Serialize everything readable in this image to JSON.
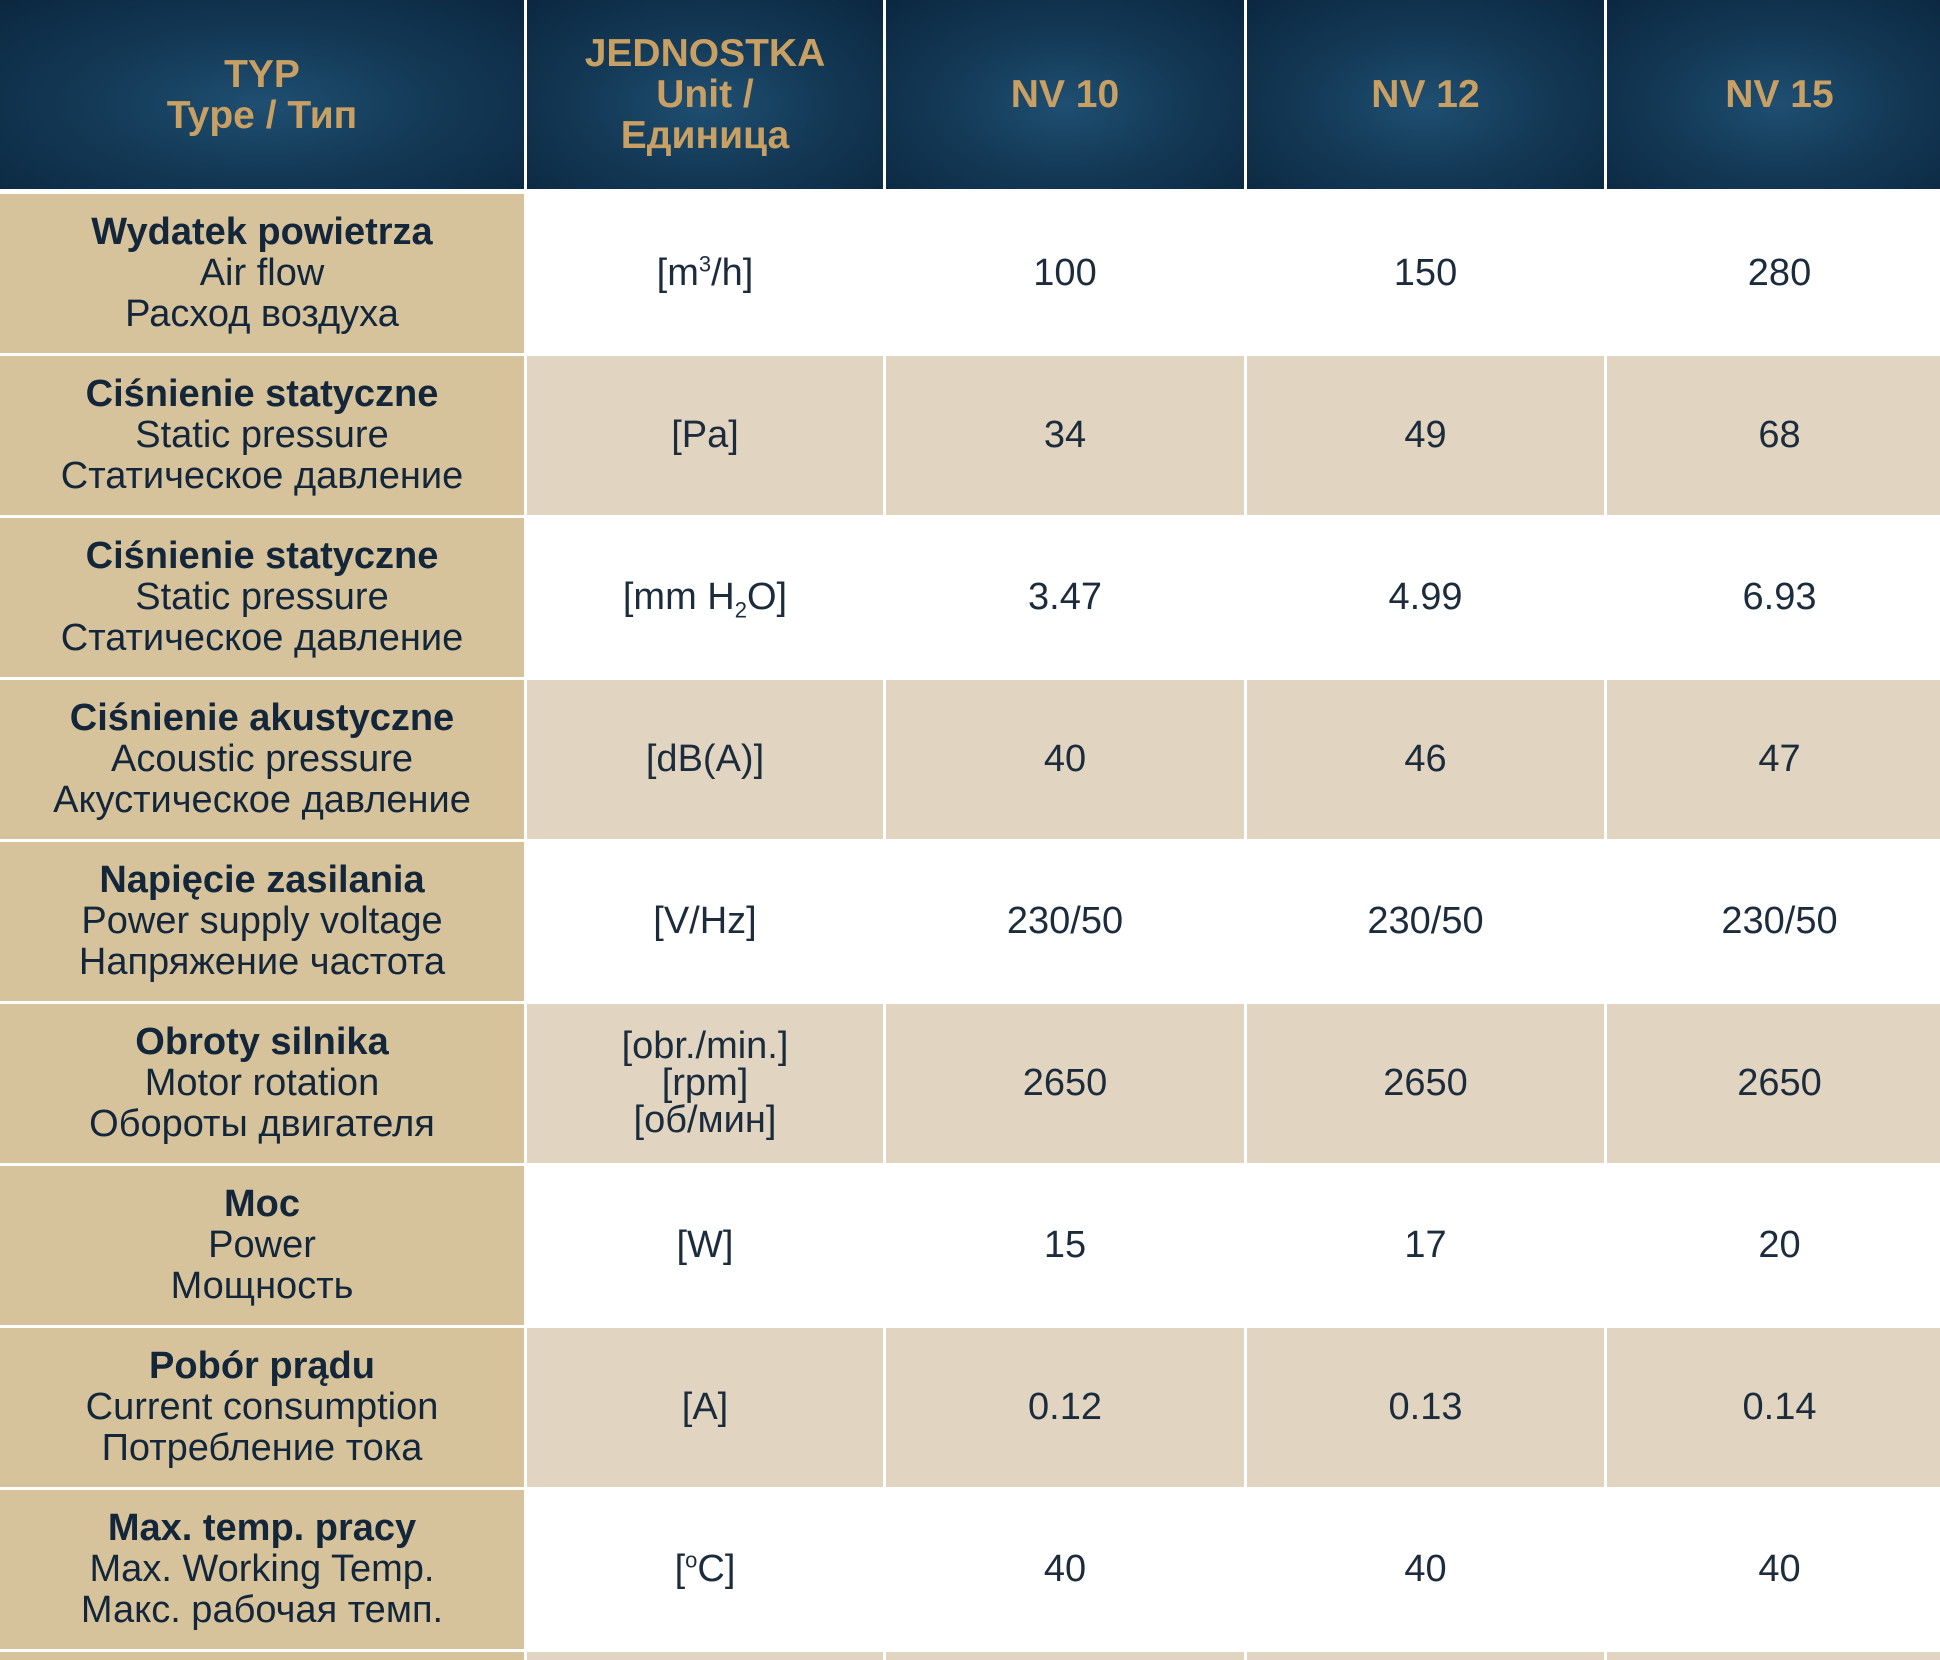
{
  "header": {
    "type": {
      "pl": "TYP",
      "sub": "Type / Тип"
    },
    "unit": {
      "pl": "JEDNOSTKA",
      "sub1": "Unit /",
      "sub2": "Единица"
    },
    "models": [
      "NV 10",
      "NV 12",
      "NV 15"
    ]
  },
  "rows": [
    {
      "pl": "Wydatek powietrza",
      "en": "Air flow",
      "ru": "Расход воздуха",
      "unit_pre": "[m",
      "unit_sup": "3",
      "unit_post": "/h]",
      "values": [
        "100",
        "150",
        "280"
      ]
    },
    {
      "pl": "Ciśnienie statyczne",
      "en": "Static pressure",
      "ru": "Статическое давление",
      "unit": "[Pa]",
      "values": [
        "34",
        "49",
        "68"
      ]
    },
    {
      "pl": "Ciśnienie statyczne",
      "en": "Static pressure",
      "ru": "Статическое давление",
      "unit_pre": "[mm H",
      "unit_sub": "2",
      "unit_post": "O]",
      "values": [
        "3.47",
        "4.99",
        "6.93"
      ]
    },
    {
      "pl": "Ciśnienie akustyczne",
      "en": "Acoustic pressure",
      "ru": "Акустическое давление",
      "unit": "[dB(A)]",
      "values": [
        "40",
        "46",
        "47"
      ]
    },
    {
      "pl": "Napięcie zasilania",
      "en": "Power supply voltage",
      "ru": "Напряжение частота",
      "unit": "[V/Hz]",
      "values": [
        "230/50",
        "230/50",
        "230/50"
      ]
    },
    {
      "pl": "Obroty silnika",
      "en": "Motor rotation",
      "ru": "Обороты двигателя",
      "unit1": "[obr./min.]",
      "unit2": "[rpm]",
      "unit3": "[об/мин]",
      "values": [
        "2650",
        "2650",
        "2650"
      ]
    },
    {
      "pl": "Moc",
      "en": "Power",
      "ru": "Мощность",
      "unit": "[W]",
      "values": [
        "15",
        "17",
        "20"
      ]
    },
    {
      "pl": "Pobór prądu",
      "en": "Current consumption",
      "ru": "Потребление тока",
      "unit": "[A]",
      "values": [
        "0.12",
        "0.13",
        "0.14"
      ]
    },
    {
      "pl": "Max. temp. pracy",
      "en": "Max. Working Temp.",
      "ru": "Макс. рабочая темп.",
      "unit_pre": "[",
      "unit_sup": "o",
      "unit_post": "C]",
      "values": [
        "40",
        "40",
        "40"
      ]
    }
  ],
  "colors": {
    "header_bg": "#143a57",
    "header_text": "#c9a063",
    "param_bg": "#d6c39c",
    "alt_row_bg": "#e1d5c1",
    "text": "#1c2c3c"
  }
}
